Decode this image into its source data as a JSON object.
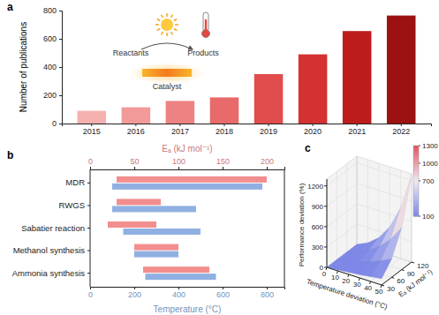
{
  "chart_data": [
    {
      "type": "bar",
      "title": "a",
      "categories": [
        "2015",
        "2016",
        "2017",
        "2018",
        "2019",
        "2020",
        "2021",
        "2022"
      ],
      "values": [
        90,
        115,
        160,
        185,
        350,
        490,
        655,
        765
      ],
      "colors": [
        "#f5b0b0",
        "#f29a9a",
        "#ee8282",
        "#e96a6a",
        "#e14c4c",
        "#d43131",
        "#bd1c1c",
        "#9c1212"
      ],
      "ylabel": "Number of publications",
      "ylim": [
        0,
        800
      ],
      "yticks": [
        0,
        200,
        400,
        600,
        800
      ],
      "annotations": [
        "Reactants",
        "Products",
        "Catalyst"
      ]
    },
    {
      "type": "range",
      "title": "b",
      "orientation": "horizontal",
      "categories": [
        "MDR",
        "RWGS",
        "Sabatier reaction",
        "Methanol synthesis",
        "Ammonia synthesis"
      ],
      "xlabel": "Temperature (°C)",
      "xlim": [
        0,
        880
      ],
      "xticks": [
        0,
        200,
        400,
        600,
        800
      ],
      "x2label": "Eₐ (kJ mol⁻¹)",
      "x2lim": [
        0,
        220
      ],
      "x2ticks": [
        0,
        50,
        100,
        150,
        200
      ],
      "series": [
        {
          "axis": "x2",
          "color": "#f28e8e",
          "low": [
            30,
            30,
            20,
            50,
            60
          ],
          "high": [
            200,
            80,
            75,
            100,
            135
          ]
        },
        {
          "color": "#90b0e2",
          "low": [
            100,
            100,
            150,
            200,
            250
          ],
          "high": [
            780,
            480,
            500,
            400,
            570
          ]
        }
      ]
    },
    {
      "type": "surface",
      "title": "c",
      "x": [
        0,
        10,
        20,
        30,
        40,
        50
      ],
      "y": [
        30,
        60,
        90,
        120
      ],
      "z": [
        [
          0,
          15,
          32,
          50,
          71,
          93
        ],
        [
          0,
          33,
          74,
          126,
          191,
          271
        ],
        [
          0,
          53,
          130,
          240,
          397,
          616
        ],
        [
          0,
          76,
          203,
          412,
          748,
          1279
        ]
      ],
      "xlabel": "Temperature deviation (°C)",
      "ylabel": "Eₐ (kJ mol⁻¹)",
      "zlabel": "Performance deviation (%)",
      "xlim": [
        0,
        50
      ],
      "xticks": [
        0,
        10,
        20,
        30,
        40,
        50
      ],
      "ylim": [
        30,
        120
      ],
      "yticks": [
        30,
        60,
        90,
        120
      ],
      "zlim": [
        0,
        1300
      ],
      "zticks": [
        0,
        300,
        600,
        900,
        1200
      ],
      "colorbar": {
        "range": [
          100,
          1300
        ],
        "ticks": [
          100,
          700,
          1000,
          1300
        ]
      }
    }
  ]
}
